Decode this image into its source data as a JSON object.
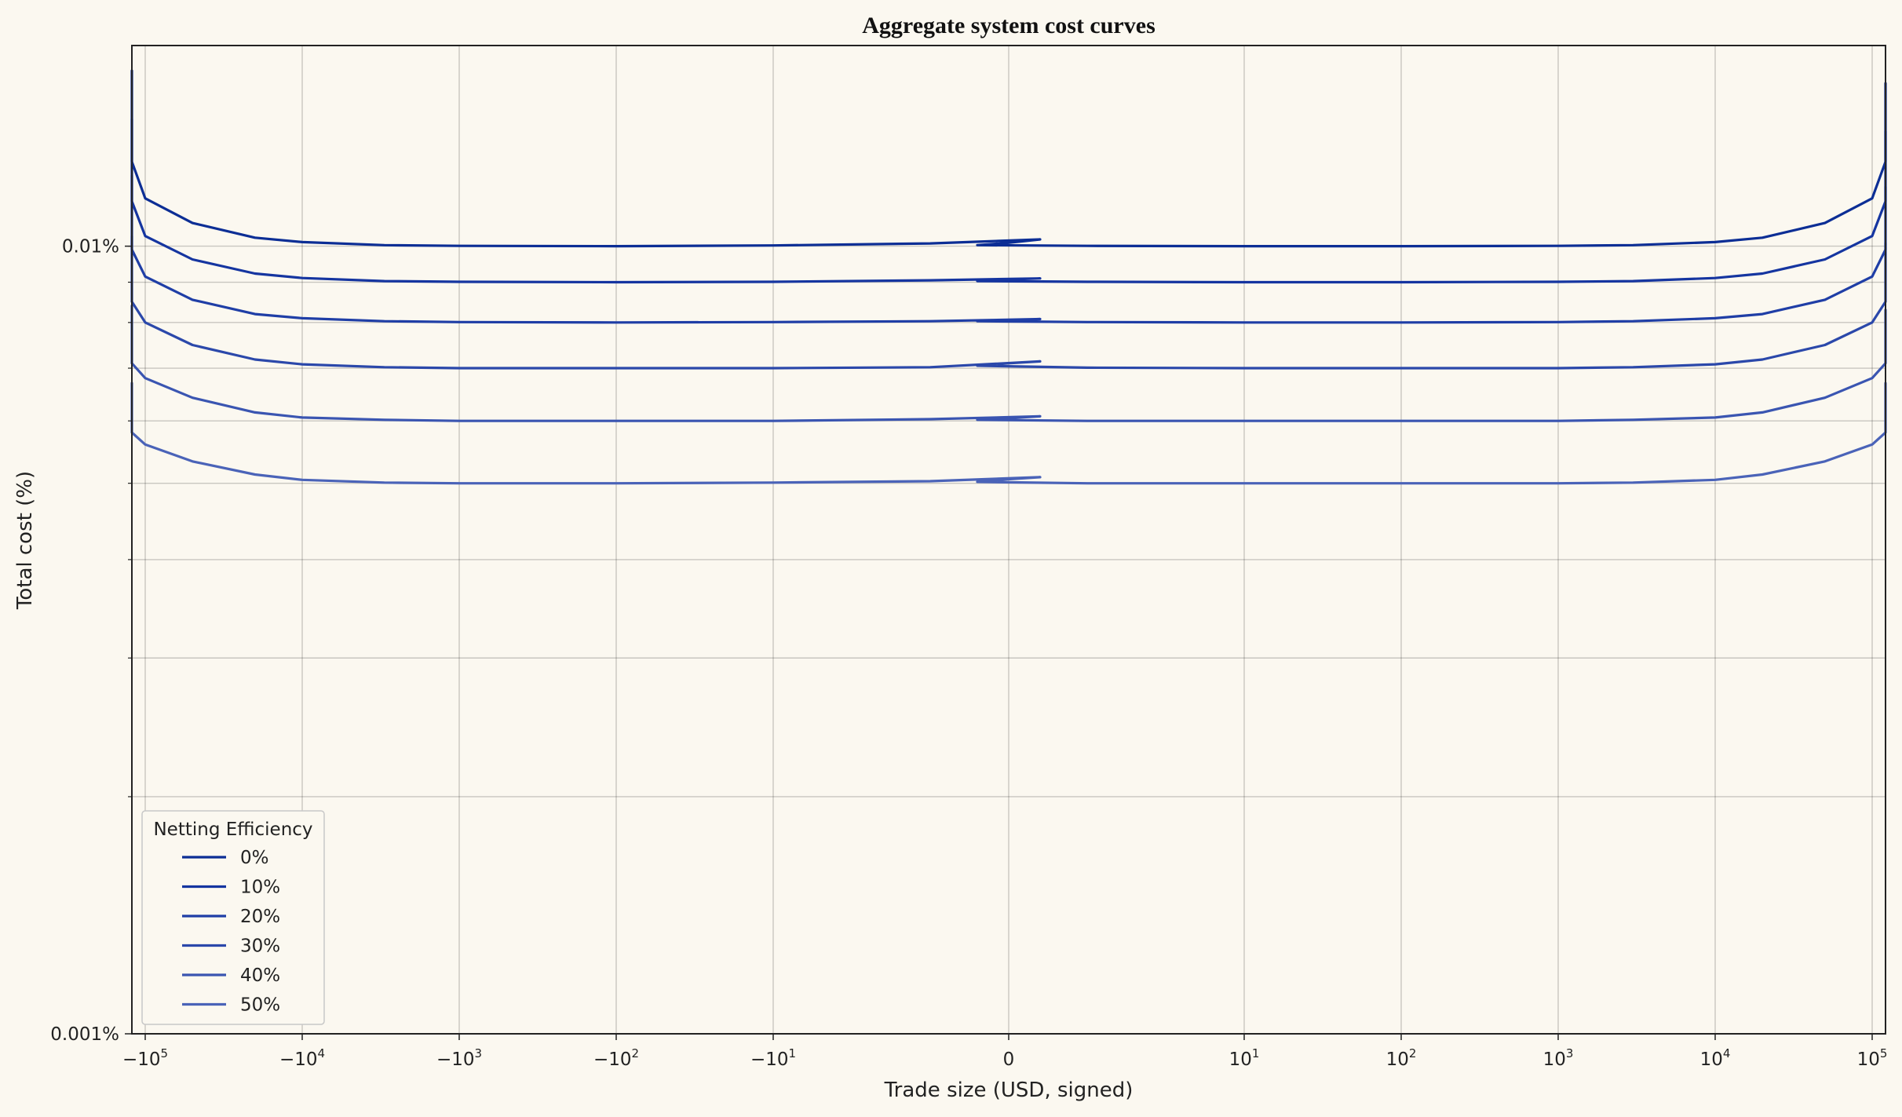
{
  "chart_data": {
    "type": "line",
    "title": "Aggregate system cost curves",
    "xlabel": "Trade size (USD, signed)",
    "ylabel": "Total cost (%)",
    "x_scale": "symlog",
    "y_scale": "log",
    "xlim": [
      -500000,
      500000
    ],
    "ylim": [
      0.001,
      0.017
    ],
    "x_ticks": [
      {
        "label": "−10",
        "exp": "5"
      },
      {
        "label": "−10",
        "exp": "4"
      },
      {
        "label": "−10",
        "exp": "3"
      },
      {
        "label": "−10",
        "exp": "2"
      },
      {
        "label": "−10",
        "exp": "1"
      },
      {
        "label": "0",
        "exp": ""
      },
      {
        "label": "10",
        "exp": "1"
      },
      {
        "label": "10",
        "exp": "2"
      },
      {
        "label": "10",
        "exp": "3"
      },
      {
        "label": "10",
        "exp": "4"
      },
      {
        "label": "10",
        "exp": "5"
      }
    ],
    "y_ticks": [
      "0.01%",
      "0.001%"
    ],
    "grid": true,
    "legend": {
      "title": "Netting Efficiency",
      "position": "bottom-left"
    },
    "x": [
      -500000,
      -200000,
      -100000,
      -50000,
      -20000,
      -10000,
      -3000,
      -1000,
      -100,
      -10,
      -1,
      -0.3,
      0,
      0.3,
      1,
      10,
      100,
      1000,
      3000,
      10000,
      20000,
      50000,
      100000,
      200000,
      500000
    ],
    "series": [
      {
        "name": "0%",
        "color": "#0c2e95",
        "values": [
          0.0167,
          0.0128,
          0.0115,
          0.0107,
          0.01025,
          0.01012,
          0.01003,
          0.01001,
          0.01,
          0.01002,
          0.01008,
          0.0102,
          0.0101,
          0.01003,
          0.01001,
          0.01,
          0.01,
          0.01001,
          0.01003,
          0.01012,
          0.01025,
          0.0107,
          0.0115,
          0.0128,
          0.0161
        ]
      },
      {
        "name": "10%",
        "color": "#1535a0",
        "values": [
          0.0145,
          0.0114,
          0.0103,
          0.00962,
          0.00923,
          0.00911,
          0.00903,
          0.00901,
          0.009,
          0.00901,
          0.00905,
          0.0091,
          0.00907,
          0.00903,
          0.00901,
          0.009,
          0.009,
          0.00901,
          0.00903,
          0.00911,
          0.00923,
          0.00962,
          0.0103,
          0.0114,
          0.014
        ]
      },
      {
        "name": "20%",
        "color": "#1f3ea6",
        "values": [
          0.0123,
          0.0099,
          0.00915,
          0.00855,
          0.0082,
          0.0081,
          0.00803,
          0.00801,
          0.008,
          0.00801,
          0.00803,
          0.00808,
          0.00806,
          0.00803,
          0.00801,
          0.008,
          0.008,
          0.00801,
          0.00803,
          0.0081,
          0.0082,
          0.00855,
          0.00915,
          0.0099,
          0.0119
        ]
      },
      {
        "name": "30%",
        "color": "#2b48aa",
        "values": [
          0.0103,
          0.0085,
          0.008,
          0.00749,
          0.00718,
          0.00708,
          0.00702,
          0.007,
          0.007,
          0.007,
          0.00702,
          0.00714,
          0.0071,
          0.00705,
          0.00701,
          0.007,
          0.007,
          0.007,
          0.00702,
          0.00708,
          0.00718,
          0.00749,
          0.008,
          0.0085,
          0.0101
        ]
      },
      {
        "name": "40%",
        "color": "#3a55b1",
        "values": [
          0.0084,
          0.0071,
          0.0068,
          0.00642,
          0.00615,
          0.00606,
          0.00602,
          0.006,
          0.006,
          0.006,
          0.00603,
          0.00608,
          0.00605,
          0.00602,
          0.006,
          0.006,
          0.006,
          0.006,
          0.00602,
          0.00606,
          0.00615,
          0.00642,
          0.0068,
          0.0071,
          0.0083
        ]
      },
      {
        "name": "50%",
        "color": "#4a63b8",
        "values": [
          0.0067,
          0.0058,
          0.0056,
          0.00533,
          0.00513,
          0.00505,
          0.00501,
          0.005,
          0.005,
          0.00501,
          0.00503,
          0.00509,
          0.00506,
          0.00502,
          0.005,
          0.005,
          0.005,
          0.005,
          0.00501,
          0.00505,
          0.00513,
          0.00533,
          0.0056,
          0.0058,
          0.0067
        ]
      }
    ]
  }
}
